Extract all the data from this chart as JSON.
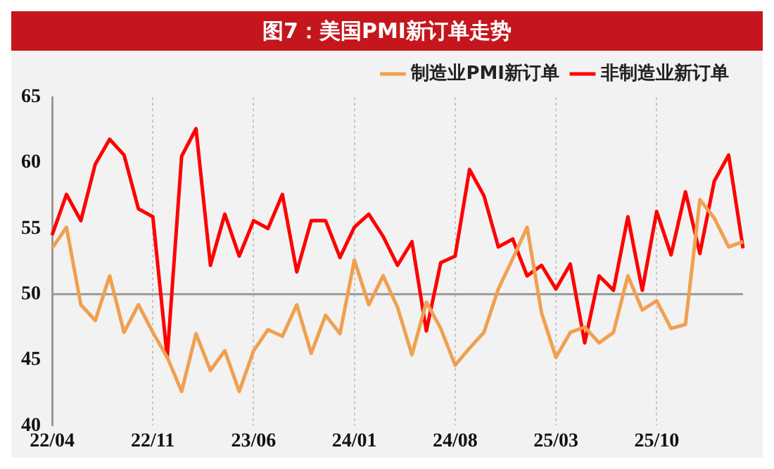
{
  "chart_data": {
    "type": "line",
    "title": "图7：美国PMI新订单走势",
    "categories": [
      "22/04",
      null,
      null,
      null,
      null,
      null,
      null,
      "22/11",
      null,
      null,
      null,
      null,
      null,
      null,
      "23/06",
      null,
      null,
      null,
      null,
      null,
      null,
      "24/01",
      null,
      null,
      null,
      null,
      null,
      null,
      "24/08",
      null,
      null,
      null,
      null,
      null,
      null,
      "25/03",
      null,
      null,
      null,
      null,
      null,
      null,
      "25/10",
      null,
      null,
      null,
      null,
      null,
      null
    ],
    "series": [
      {
        "name": "制造业PMI新订单",
        "color": "#f0a050",
        "values": [
          53.5,
          55.1,
          49.2,
          48.0,
          51.4,
          47.1,
          49.2,
          47.1,
          45.2,
          42.6,
          47.0,
          44.2,
          45.7,
          42.6,
          45.7,
          47.3,
          46.8,
          49.2,
          45.5,
          48.4,
          47.0,
          52.6,
          49.2,
          51.4,
          49.0,
          45.4,
          49.4,
          47.4,
          44.6,
          45.9,
          47.1,
          50.4,
          52.7,
          55.1,
          48.6,
          45.2,
          47.1,
          47.5,
          46.3,
          47.1,
          51.4,
          48.8,
          49.5,
          47.4,
          47.7,
          57.2,
          55.8,
          53.6,
          54.0
        ]
      },
      {
        "name": "非制造业新订单",
        "color": "#ff0000",
        "values": [
          54.5,
          57.6,
          55.6,
          59.9,
          61.8,
          60.6,
          56.5,
          55.9,
          45.2,
          60.5,
          62.6,
          52.2,
          56.1,
          52.9,
          55.6,
          55.0,
          57.6,
          51.7,
          55.6,
          55.6,
          52.8,
          55.1,
          56.1,
          54.4,
          52.2,
          54.0,
          47.2,
          52.4,
          52.9,
          59.5,
          57.5,
          53.6,
          54.2,
          51.4,
          52.2,
          50.4,
          52.3,
          46.3,
          51.4,
          50.3,
          55.9,
          50.3,
          56.3,
          53.0,
          57.8,
          53.1,
          58.6,
          60.6,
          53.5
        ]
      }
    ],
    "ylim": [
      40,
      65
    ],
    "yticks": [
      40,
      45,
      50,
      55,
      60,
      65
    ],
    "grid": "x",
    "legend": "top",
    "marker": "none",
    "line_style": "solid",
    "ref_lines": [
      {
        "axis": "y",
        "value": 50,
        "color": "#999999"
      }
    ]
  }
}
